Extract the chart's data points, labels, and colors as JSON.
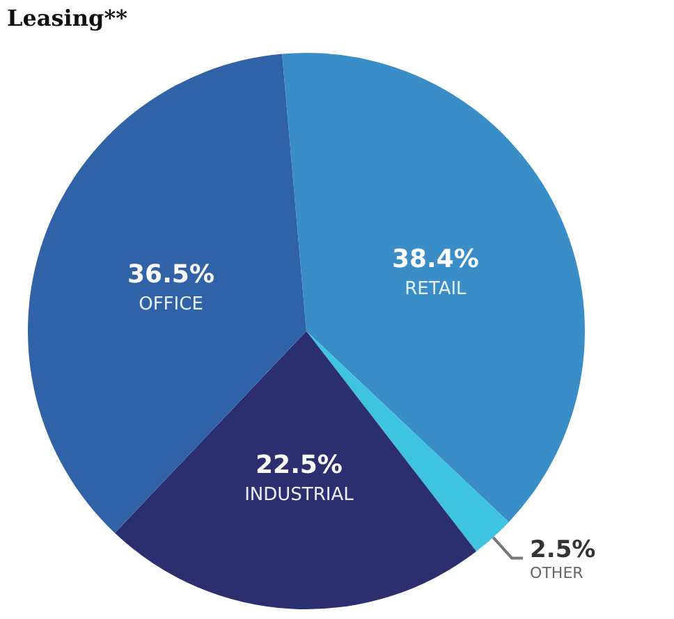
{
  "chart_data": {
    "type": "pie",
    "title": "Leasing**",
    "categories": [
      "RETAIL",
      "OTHER",
      "INDUSTRIAL",
      "OFFICE"
    ],
    "values": [
      38.4,
      2.5,
      22.5,
      36.5
    ],
    "value_labels": [
      "38.4%",
      "2.5%",
      "22.5%",
      "36.5%"
    ],
    "colors": [
      "#3a8ec8",
      "#3ec3e0",
      "#2b2f6f",
      "#2f62a6"
    ],
    "legend": false
  }
}
